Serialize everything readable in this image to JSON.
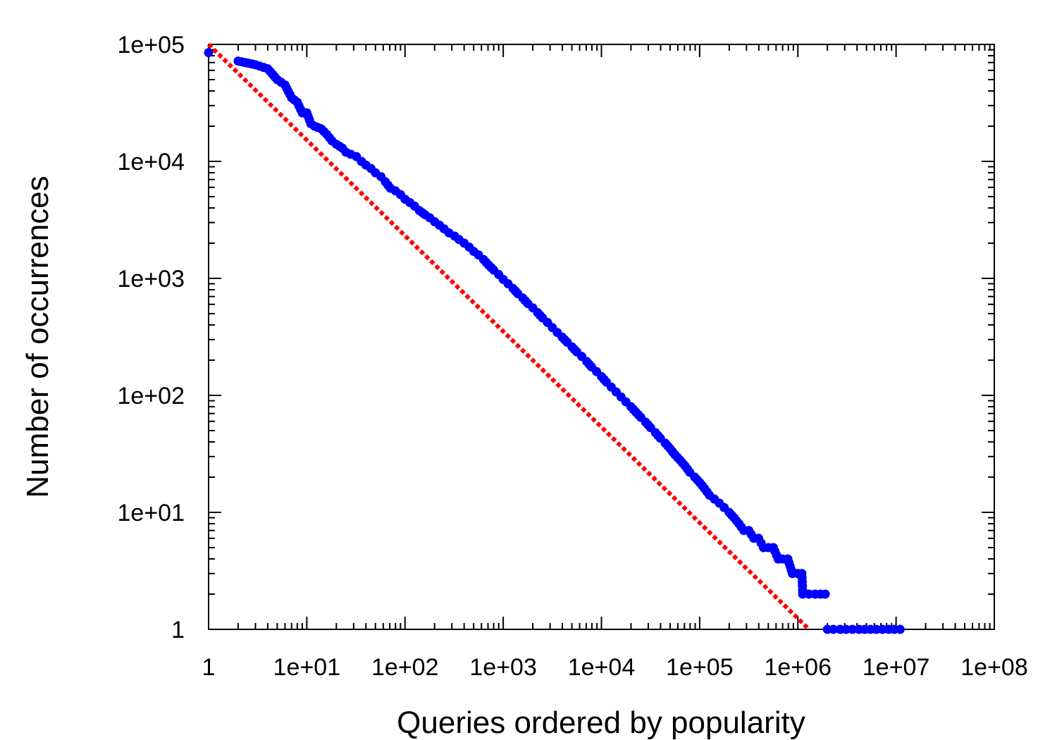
{
  "chart_data": {
    "type": "scatter",
    "title": "",
    "xlabel": "Queries ordered by popularity",
    "ylabel": "Number of occurrences",
    "x_scale": "log",
    "y_scale": "log",
    "xlim": [
      1,
      100000000
    ],
    "ylim": [
      1,
      100000
    ],
    "grid": false,
    "legend": "none",
    "x_ticks": [
      {
        "value": 1,
        "label": "1"
      },
      {
        "value": 10,
        "label": "1e+01"
      },
      {
        "value": 100,
        "label": "1e+02"
      },
      {
        "value": 1000,
        "label": "1e+03"
      },
      {
        "value": 10000,
        "label": "1e+04"
      },
      {
        "value": 100000,
        "label": "1e+05"
      },
      {
        "value": 1000000,
        "label": "1e+06"
      },
      {
        "value": 10000000,
        "label": "1e+07"
      },
      {
        "value": 100000000,
        "label": "1e+08"
      }
    ],
    "y_ticks": [
      {
        "value": 1,
        "label": "1"
      },
      {
        "value": 10,
        "label": "1e+01"
      },
      {
        "value": 100,
        "label": "1e+02"
      },
      {
        "value": 1000,
        "label": "1e+03"
      },
      {
        "value": 10000,
        "label": "1e+04"
      },
      {
        "value": 100000,
        "label": "1e+05"
      }
    ],
    "series": [
      {
        "kind": "points",
        "color": "#0000ff",
        "points": [
          [
            1,
            85000
          ],
          [
            2,
            72000
          ],
          [
            3,
            67000
          ],
          [
            4,
            62000
          ],
          [
            5,
            50000
          ],
          [
            6,
            45000
          ],
          [
            7,
            35000
          ],
          [
            8,
            32000
          ],
          [
            9,
            26000
          ],
          [
            10,
            26000
          ],
          [
            11,
            21000
          ],
          [
            12,
            20000
          ],
          [
            14,
            19000
          ],
          [
            16,
            17000
          ],
          [
            18,
            15000
          ],
          [
            20,
            14000
          ],
          [
            23,
            13000
          ],
          [
            25,
            12000
          ],
          [
            28,
            11500
          ],
          [
            32,
            11000
          ],
          [
            36,
            10000
          ],
          [
            40,
            9300
          ],
          [
            45,
            8700
          ],
          [
            50,
            8000
          ],
          [
            57,
            7400
          ],
          [
            63,
            6700
          ],
          [
            71,
            5900
          ],
          [
            80,
            5600
          ],
          [
            90,
            5200
          ],
          [
            100,
            4750
          ],
          [
            112,
            4450
          ],
          [
            125,
            4150
          ],
          [
            140,
            3800
          ],
          [
            160,
            3500
          ],
          [
            178,
            3300
          ],
          [
            200,
            3050
          ],
          [
            224,
            2850
          ],
          [
            250,
            2650
          ],
          [
            280,
            2450
          ],
          [
            320,
            2300
          ],
          [
            355,
            2150
          ],
          [
            400,
            2000
          ],
          [
            450,
            1850
          ],
          [
            500,
            1700
          ],
          [
            560,
            1590
          ],
          [
            630,
            1450
          ],
          [
            710,
            1300
          ],
          [
            800,
            1180
          ],
          [
            900,
            1080
          ],
          [
            1000,
            980
          ],
          [
            1120,
            900
          ],
          [
            1260,
            820
          ],
          [
            1410,
            740
          ],
          [
            1580,
            680
          ],
          [
            1780,
            610
          ],
          [
            2000,
            560
          ],
          [
            2240,
            510
          ],
          [
            2510,
            460
          ],
          [
            2820,
            420
          ],
          [
            3160,
            380
          ],
          [
            3550,
            345
          ],
          [
            3980,
            315
          ],
          [
            4470,
            285
          ],
          [
            5010,
            260
          ],
          [
            5620,
            235
          ],
          [
            6310,
            215
          ],
          [
            7080,
            195
          ],
          [
            7940,
            175
          ],
          [
            8910,
            160
          ],
          [
            10000,
            145
          ],
          [
            11220,
            130
          ],
          [
            12590,
            118
          ],
          [
            14130,
            107
          ],
          [
            15850,
            97
          ],
          [
            17780,
            88
          ],
          [
            19950,
            80
          ],
          [
            22390,
            72
          ],
          [
            25120,
            65
          ],
          [
            28180,
            59
          ],
          [
            31620,
            53
          ],
          [
            35480,
            48
          ],
          [
            39810,
            43
          ],
          [
            44670,
            39
          ],
          [
            50120,
            35
          ],
          [
            56230,
            31
          ],
          [
            63100,
            28
          ],
          [
            70790,
            25
          ],
          [
            79430,
            22
          ],
          [
            89130,
            20
          ],
          [
            100000,
            18
          ],
          [
            112200,
            16
          ],
          [
            125900,
            14
          ],
          [
            141300,
            13
          ],
          [
            158500,
            12
          ],
          [
            177800,
            11
          ],
          [
            199500,
            10
          ],
          [
            223900,
            9
          ],
          [
            251200,
            8
          ],
          [
            281800,
            7
          ],
          [
            316200,
            7
          ],
          [
            355000,
            6
          ],
          [
            398100,
            6
          ],
          [
            446700,
            5
          ],
          [
            501200,
            5
          ],
          [
            562300,
            5
          ],
          [
            630000,
            4
          ],
          [
            700000,
            4
          ],
          [
            790000,
            4
          ],
          [
            880000,
            3
          ],
          [
            1000000,
            3
          ],
          [
            1100000,
            3
          ],
          [
            1120000,
            2
          ],
          [
            1300000,
            2
          ],
          [
            1500000,
            2
          ],
          [
            1700000,
            2
          ],
          [
            1900000,
            2
          ],
          [
            2000000,
            1
          ],
          [
            2300000,
            1
          ],
          [
            2700000,
            1
          ],
          [
            3100000,
            1
          ],
          [
            3600000,
            1
          ],
          [
            4200000,
            1
          ],
          [
            4800000,
            1
          ],
          [
            5500000,
            1
          ],
          [
            6300000,
            1
          ],
          [
            7300000,
            1
          ],
          [
            8400000,
            1
          ],
          [
            9600000,
            1
          ],
          [
            11000000,
            1
          ]
        ]
      },
      {
        "kind": "dashed-line",
        "color": "#ff0000",
        "points": [
          [
            1,
            100000
          ],
          [
            1300000,
            1
          ]
        ]
      }
    ]
  }
}
